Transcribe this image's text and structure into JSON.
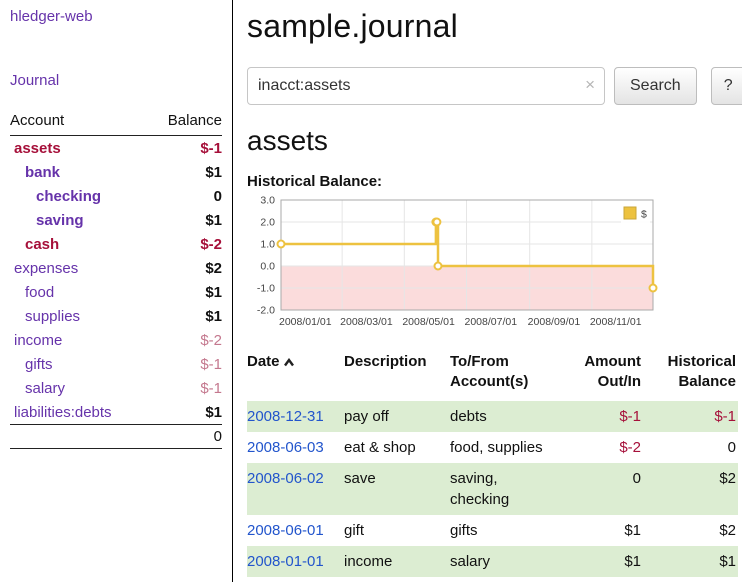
{
  "app": {
    "title": "hledger-web"
  },
  "sidebar": {
    "journal_link": "Journal",
    "accounts": {
      "header_account": "Account",
      "header_balance": "Balance",
      "rows": [
        {
          "account": "assets",
          "balance": "$-1",
          "indent": 0,
          "bold": true,
          "name_style": "neg",
          "balance_style": "neg"
        },
        {
          "account": "bank",
          "balance": "$1",
          "indent": 1,
          "bold": true,
          "name_style": "",
          "balance_style": ""
        },
        {
          "account": "checking",
          "balance": "0",
          "indent": 2,
          "bold": true,
          "name_style": "",
          "balance_style": ""
        },
        {
          "account": "saving",
          "balance": "$1",
          "indent": 2,
          "bold": true,
          "name_style": "",
          "balance_style": ""
        },
        {
          "account": "cash",
          "balance": "$-2",
          "indent": 1,
          "bold": true,
          "name_style": "neg",
          "balance_style": "neg"
        },
        {
          "account": "expenses",
          "balance": "$2",
          "indent": 0,
          "bold": false,
          "name_style": "",
          "balance_style": ""
        },
        {
          "account": "food",
          "balance": "$1",
          "indent": 1,
          "bold": false,
          "name_style": "",
          "balance_style": ""
        },
        {
          "account": "supplies",
          "balance": "$1",
          "indent": 1,
          "bold": false,
          "name_style": "",
          "balance_style": ""
        },
        {
          "account": "income",
          "balance": "$-2",
          "indent": 0,
          "bold": false,
          "name_style": "",
          "balance_style": "neglight"
        },
        {
          "account": "gifts",
          "balance": "$-1",
          "indent": 1,
          "bold": false,
          "name_style": "",
          "balance_style": "neglight"
        },
        {
          "account": "salary",
          "balance": "$-1",
          "indent": 1,
          "bold": false,
          "name_style": "",
          "balance_style": "neglight"
        },
        {
          "account": "liabilities:debts",
          "balance": "$1",
          "indent": 0,
          "bold": false,
          "name_style": "",
          "balance_style": ""
        }
      ],
      "total": "0"
    }
  },
  "main": {
    "title": "sample.journal",
    "heading": "assets",
    "chart_label": "Historical Balance:",
    "search": {
      "value": "inacct:assets",
      "clear_icon": "×",
      "button_label": "Search",
      "help_label": "?"
    }
  },
  "chart_data": {
    "type": "line",
    "step": true,
    "title": "Historical Balance",
    "series": [
      {
        "name": "$",
        "points": [
          [
            "2008-01-01",
            1
          ],
          [
            "2008-06-01",
            2
          ],
          [
            "2008-06-02",
            2
          ],
          [
            "2008-06-03",
            0
          ],
          [
            "2008-12-31",
            -1
          ]
        ]
      }
    ],
    "x_range": [
      "2008-01-01",
      "2008-12-31"
    ],
    "ylim": [
      -2,
      3
    ],
    "yticks": [
      {
        "value": -2,
        "label": "-2.0"
      },
      {
        "value": -1,
        "label": "-1.0"
      },
      {
        "value": 0,
        "label": "0.0"
      },
      {
        "value": 1,
        "label": "1.0"
      },
      {
        "value": 2,
        "label": "2.0"
      },
      {
        "value": 3,
        "label": "3.0"
      }
    ],
    "xticks": [
      {
        "date": "2008-01-01",
        "label": "2008/01/01"
      },
      {
        "date": "2008-03-01",
        "label": "2008/03/01"
      },
      {
        "date": "2008-05-01",
        "label": "2008/05/01"
      },
      {
        "date": "2008-07-01",
        "label": "2008/07/01"
      },
      {
        "date": "2008-09-01",
        "label": "2008/09/01"
      },
      {
        "date": "2008-11-01",
        "label": "2008/11/01"
      }
    ],
    "legend": {
      "label": "$",
      "position": "top-right"
    },
    "grid": true,
    "colors": {
      "line": "#edc240",
      "line_border": "#c9a63a",
      "negative_area": "#fbdcdc",
      "marker_fill": "#ffffff"
    }
  },
  "register": {
    "headers": {
      "date": "Date",
      "sort_icon": "chevron-up",
      "description": "Description",
      "account": "To/From Account(s)",
      "amount": "Amount Out/In",
      "balance": "Historical Balance"
    },
    "rows": [
      {
        "date": "2008-12-31",
        "description": "pay off",
        "account": "debts",
        "amount": "$-1",
        "balance": "$-1",
        "amount_neg": true,
        "balance_neg": true
      },
      {
        "date": "2008-06-03",
        "description": "eat & shop",
        "account": "food, supplies",
        "amount": "$-2",
        "balance": "0",
        "amount_neg": true,
        "balance_neg": false
      },
      {
        "date": "2008-06-02",
        "description": "save",
        "account": "saving, checking",
        "amount": "0",
        "balance": "$2",
        "amount_neg": false,
        "balance_neg": false
      },
      {
        "date": "2008-06-01",
        "description": "gift",
        "account": "gifts",
        "amount": "$1",
        "balance": "$2",
        "amount_neg": false,
        "balance_neg": false
      },
      {
        "date": "2008-01-01",
        "description": "income",
        "account": "salary",
        "amount": "$1",
        "balance": "$1",
        "amount_neg": false,
        "balance_neg": false
      }
    ]
  },
  "colors": {
    "link_purple": "#6633aa",
    "negative_strong": "#a6103a",
    "negative_light": "#c4788e",
    "date_link_blue": "#2255cc",
    "row_green": "#dcedd2"
  }
}
